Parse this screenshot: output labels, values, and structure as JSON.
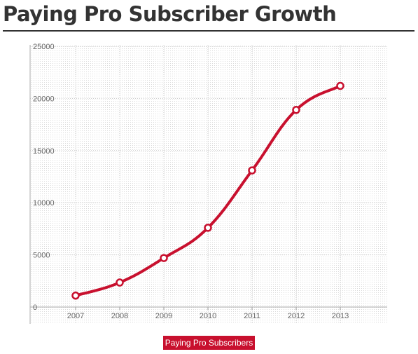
{
  "page": {
    "title": "Paying Pro Subscriber Growth"
  },
  "chart_data": {
    "type": "line",
    "title": "Paying Pro Subscriber Growth",
    "xlabel": "",
    "ylabel": "",
    "x": [
      "2007",
      "2008",
      "2009",
      "2010",
      "2011",
      "2012",
      "2013"
    ],
    "series": [
      {
        "name": "Paying Pro Subscribers",
        "values": [
          1100,
          2350,
          4700,
          7600,
          13100,
          18900,
          21200
        ]
      }
    ],
    "ylim": [
      0,
      25000
    ],
    "yticks": [
      "0",
      "5000",
      "10000",
      "15000",
      "20000",
      "25000"
    ],
    "grid": true,
    "legend": "bottom-center",
    "colors": {
      "series": "#c8102e",
      "marker_fill": "#ffffff",
      "grid": "#c8c8c8",
      "title": "#333333"
    }
  }
}
